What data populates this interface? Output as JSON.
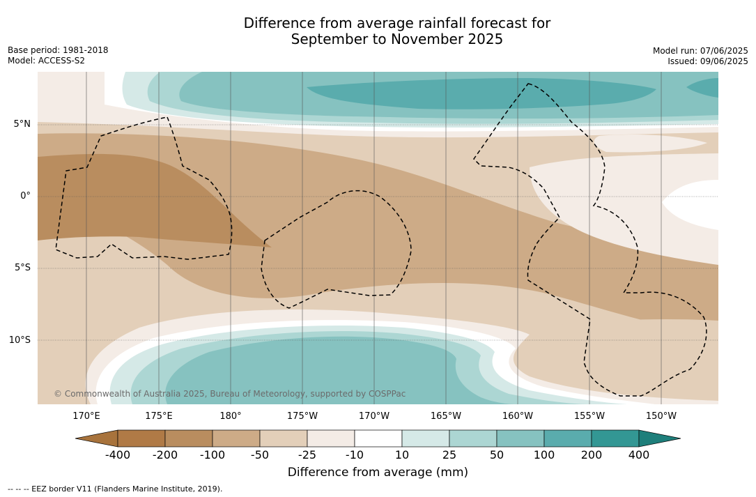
{
  "title_line1": "Difference from average rainfall forecast for",
  "title_line2": "September to November 2025",
  "base_period": "Base period: 1981-2018",
  "model": "Model: ACCESS-S2",
  "model_run": "Model run: 07/06/2025",
  "issued": "Issued: 09/06/2025",
  "copyright": "© Commonwealth of Australia 2025, Bureau of Meteorology, supported by COSPPac",
  "lon_labels": [
    "170°E",
    "175°E",
    "180°",
    "175°W",
    "170°W",
    "165°W",
    "160°W",
    "155°W",
    "150°W"
  ],
  "lat_labels": [
    "5°N",
    "0°",
    "5°S",
    "10°S"
  ],
  "colorbar": {
    "title": "Difference from average (mm)",
    "ticks": [
      "-400",
      "-200",
      "-100",
      "-50",
      "-25",
      "-10",
      "10",
      "25",
      "50",
      "100",
      "200",
      "400"
    ],
    "colors": [
      "#a8733c",
      "#b98d5f",
      "#cdab87",
      "#e3cfb9",
      "#f4ece6",
      "#ffffff",
      "#d5e9e7",
      "#acd6d3",
      "#86c2c0",
      "#5aacad",
      "#339794",
      "#1e7f7b"
    ]
  },
  "footnote": "--  --  -- EEZ border V11 (Flanders Marine Institute, 2019)."
}
